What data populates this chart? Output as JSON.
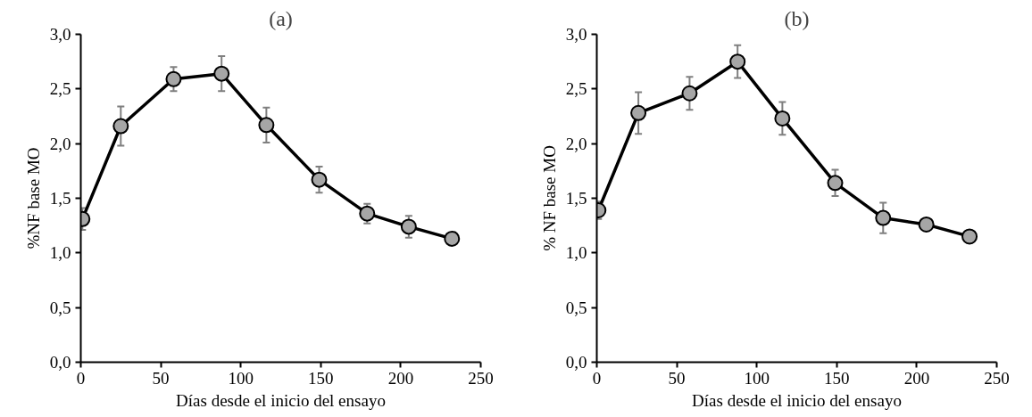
{
  "chart_data": [
    {
      "type": "line",
      "title": "(a)",
      "xlabel": "Días desde el inicio del ensayo",
      "ylabel": "%NF base MO",
      "x": [
        1,
        25,
        58,
        88,
        116,
        149,
        179,
        205,
        232
      ],
      "series": [
        {
          "color": "#a6a6a6",
          "values": [
            1.31,
            2.16,
            2.59,
            2.64,
            2.17,
            1.67,
            1.36,
            1.24,
            1.13
          ],
          "errors": [
            0.1,
            0.18,
            0.11,
            0.16,
            0.16,
            0.12,
            0.09,
            0.1,
            0.03
          ]
        }
      ],
      "xlim": [
        0,
        250
      ],
      "xticks": [
        0,
        50,
        100,
        150,
        200,
        250
      ],
      "ylim": [
        0,
        3
      ],
      "yticks": [
        {
          "value": 0,
          "label": "0,0"
        },
        {
          "value": 0.5,
          "label": "0,5"
        },
        {
          "value": 1,
          "label": "1,0"
        },
        {
          "value": 1.5,
          "label": "1,5"
        },
        {
          "value": 2,
          "label": "2,0"
        },
        {
          "value": 2.5,
          "label": "2,5"
        },
        {
          "value": 3,
          "label": "3,0"
        }
      ],
      "grid": false,
      "marker": "circle",
      "line_style": "solid"
    },
    {
      "type": "line",
      "title": "(b)",
      "xlabel": "Días desde el inicio del ensayo",
      "ylabel": "% NF base MO",
      "x": [
        1,
        26,
        58,
        88,
        116,
        149,
        179,
        206,
        233
      ],
      "series": [
        {
          "color": "#a6a6a6",
          "values": [
            1.39,
            2.28,
            2.46,
            2.75,
            2.23,
            1.64,
            1.32,
            1.26,
            1.15
          ],
          "errors": [
            0.08,
            0.19,
            0.15,
            0.15,
            0.15,
            0.12,
            0.14,
            0.03,
            0.02
          ]
        }
      ],
      "xlim": [
        0,
        250
      ],
      "xticks": [
        0,
        50,
        100,
        150,
        200,
        250
      ],
      "ylim": [
        0,
        3
      ],
      "yticks": [
        {
          "value": 0,
          "label": "0,0"
        },
        {
          "value": 0.5,
          "label": "0,5"
        },
        {
          "value": 1,
          "label": "1,0"
        },
        {
          "value": 1.5,
          "label": "1,5"
        },
        {
          "value": 2,
          "label": "2,0"
        },
        {
          "value": 2.5,
          "label": "2,5"
        },
        {
          "value": 3,
          "label": "3,0"
        }
      ],
      "grid": false,
      "marker": "circle",
      "line_style": "solid"
    }
  ]
}
